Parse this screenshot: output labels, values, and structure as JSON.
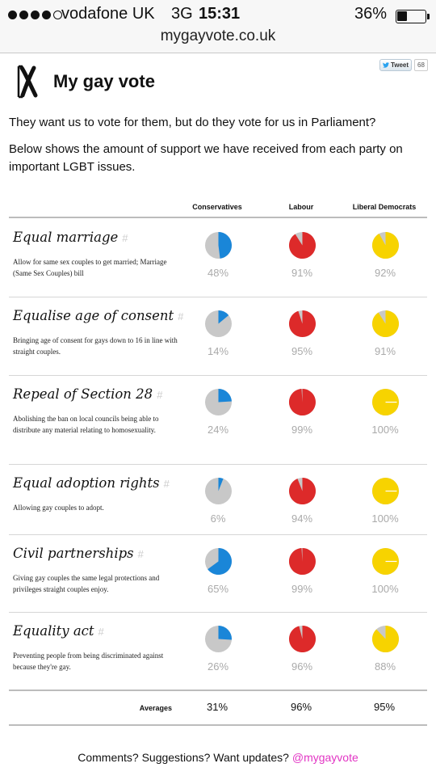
{
  "status_bar": {
    "carrier": "vodafone UK",
    "network": "3G",
    "time": "15:31",
    "battery_percent": "36%",
    "battery_level": 0.36,
    "signal_strength": 4,
    "signal_max": 5
  },
  "browser": {
    "url": "mygayvote.co.uk"
  },
  "header": {
    "title": "My gay vote",
    "tweet_label": "Tweet",
    "tweet_count": "68"
  },
  "intro": {
    "line1": "They want us to vote for them, but do they vote for us in Parliament?",
    "line2": "Below shows the amount of support we have received from each party on important LGBT issues."
  },
  "parties": [
    {
      "name": "Conservatives",
      "color": "#1a86d8"
    },
    {
      "name": "Labour",
      "color": "#dd2a2a"
    },
    {
      "name": "Liberal Democrats",
      "color": "#f7d300"
    }
  ],
  "pie_background": "#c8c8c8",
  "issues": [
    {
      "title": "Equal marriage",
      "hash": "#",
      "description": "Allow for same sex couples to get married; Marriage (Same Sex Couples) bill",
      "support": [
        "48%",
        "91%",
        "92%"
      ],
      "values": [
        48,
        91,
        92
      ]
    },
    {
      "title": "Equalise age of consent",
      "hash": "#",
      "description": "Bringing age of consent for gays down to 16 in line with straight couples.",
      "support": [
        "14%",
        "95%",
        "91%"
      ],
      "values": [
        14,
        95,
        91
      ]
    },
    {
      "title": "Repeal of Section 28",
      "hash": "#",
      "description": "Abolishing the ban on local councils being able to distribute any material relating to homosexuality.",
      "support": [
        "24%",
        "99%",
        "100%"
      ],
      "values": [
        24,
        99,
        100
      ]
    },
    {
      "title": "Equal adoption rights",
      "hash": "#",
      "description": "Allowing gay couples to adopt.",
      "support": [
        "6%",
        "94%",
        "100%"
      ],
      "values": [
        6,
        94,
        100
      ]
    },
    {
      "title": "Civil partnerships",
      "hash": "#",
      "description": "Giving gay couples the same legal protections and privileges straight couples enjoy.",
      "support": [
        "65%",
        "99%",
        "100%"
      ],
      "values": [
        65,
        99,
        100
      ]
    },
    {
      "title": "Equality act",
      "hash": "#",
      "description": "Preventing people from being discriminated against because they're gay.",
      "support": [
        "26%",
        "96%",
        "88%"
      ],
      "values": [
        26,
        96,
        88
      ]
    }
  ],
  "averages": {
    "label": "Averages",
    "values": [
      "31%",
      "96%",
      "95%"
    ]
  },
  "footer": {
    "text": "Comments? Suggestions? Want updates?",
    "handle": "@mygayvote"
  }
}
